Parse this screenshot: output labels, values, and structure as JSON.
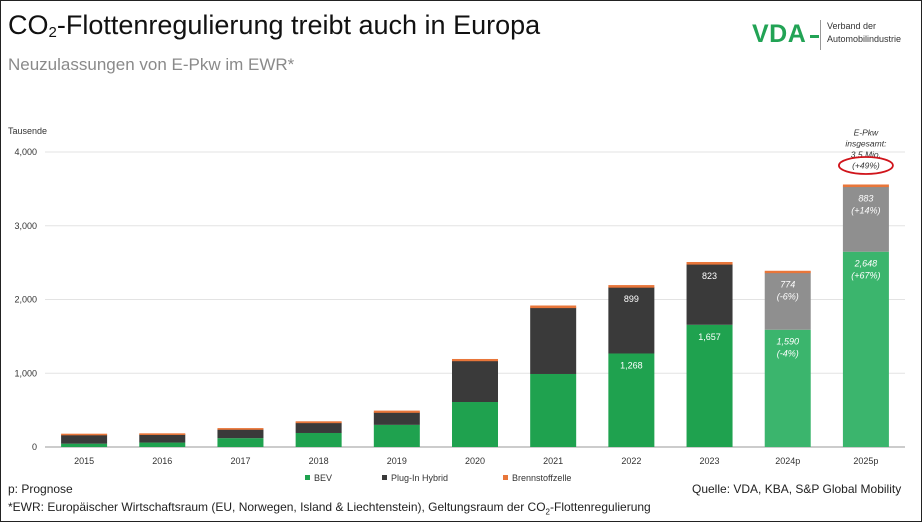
{
  "header": {
    "title_pre": "CO",
    "title_sub": "2",
    "title_post": "-Flottenregulierung treibt auch in Europa",
    "subtitle": "Neuzulassungen von E-Pkw im EWR*"
  },
  "logo": {
    "text": "VDA",
    "line1": "Verband der",
    "line2": "Automobilindustrie"
  },
  "colors": {
    "bev": "#1fa24f",
    "phev": "#3a3a3a",
    "phev_forecast": "#8f8f8f",
    "bev_forecast": "#3bb56d",
    "fcev": "#e8763a",
    "highlight_circle": "#d0141b"
  },
  "chart_data": {
    "type": "bar",
    "stacked": true,
    "ylabel": "Tausende",
    "ylim": [
      0,
      4000
    ],
    "yticks": [
      0,
      1000,
      2000,
      3000,
      4000
    ],
    "ytick_labels": [
      "0",
      "1,000",
      "2,000",
      "3,000",
      "4,000"
    ],
    "categories": [
      "2015",
      "2016",
      "2017",
      "2018",
      "2019",
      "2020",
      "2021",
      "2022",
      "2023",
      "2024p",
      "2025p"
    ],
    "forecast_categories": [
      "2024p",
      "2025p"
    ],
    "series": [
      {
        "name": "BEV",
        "values": [
          45,
          60,
          120,
          190,
          300,
          610,
          990,
          1268,
          1657,
          1590,
          2648
        ]
      },
      {
        "name": "Plug-In Hybrid",
        "values": [
          120,
          110,
          120,
          140,
          170,
          560,
          900,
          899,
          823,
          774,
          883
        ]
      },
      {
        "name": "Brennstoffzelle",
        "values": [
          2,
          2,
          3,
          5,
          10,
          10,
          15,
          15,
          15,
          12,
          15
        ]
      }
    ],
    "data_labels": {
      "bev": {
        "2022": "1,268",
        "2023": "1,657",
        "2024p": "1,590",
        "2025p": "2,648"
      },
      "bev_change": {
        "2024p": "(-4%)",
        "2025p": "(+67%)"
      },
      "phev": {
        "2022": "899",
        "2023": "823",
        "2024p": "774",
        "2025p": "883"
      },
      "phev_change": {
        "2024p": "(-6%)",
        "2025p": "(+14%)"
      }
    },
    "total_annotation": [
      "E-Pkw",
      "insgesamt:",
      "3.5 Mio.",
      "(+49%)"
    ]
  },
  "footer": {
    "note": "p: Prognose",
    "ewr_pre": "*EWR: Europäischer Wirtschaftsraum (EU, Norwegen, Island & Liechtenstein), Geltungsraum der CO",
    "ewr_sub": "2",
    "ewr_post": "-Flottenregulierung",
    "source": "Quelle: VDA, KBA, S&P Global Mobility"
  }
}
